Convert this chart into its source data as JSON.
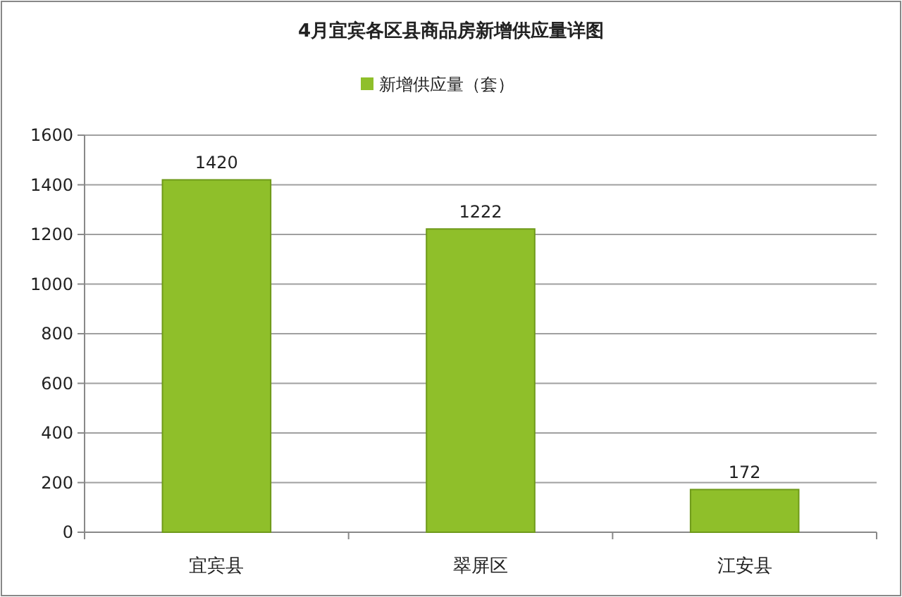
{
  "chart_data": {
    "type": "bar",
    "title": "4月宜宾各区县商品房新增供应量详图",
    "categories": [
      "宜宾县",
      "翠屏区",
      "江安县"
    ],
    "series": [
      {
        "name": "新增供应量（套）",
        "color": "#8fbf2a",
        "values": [
          1420,
          1222,
          172
        ]
      }
    ],
    "ylim": [
      0,
      1600
    ],
    "yticks": [
      0,
      200,
      400,
      600,
      800,
      1000,
      1200,
      1400,
      1600
    ],
    "grid": "y",
    "legend": "top",
    "data_labels": true
  }
}
